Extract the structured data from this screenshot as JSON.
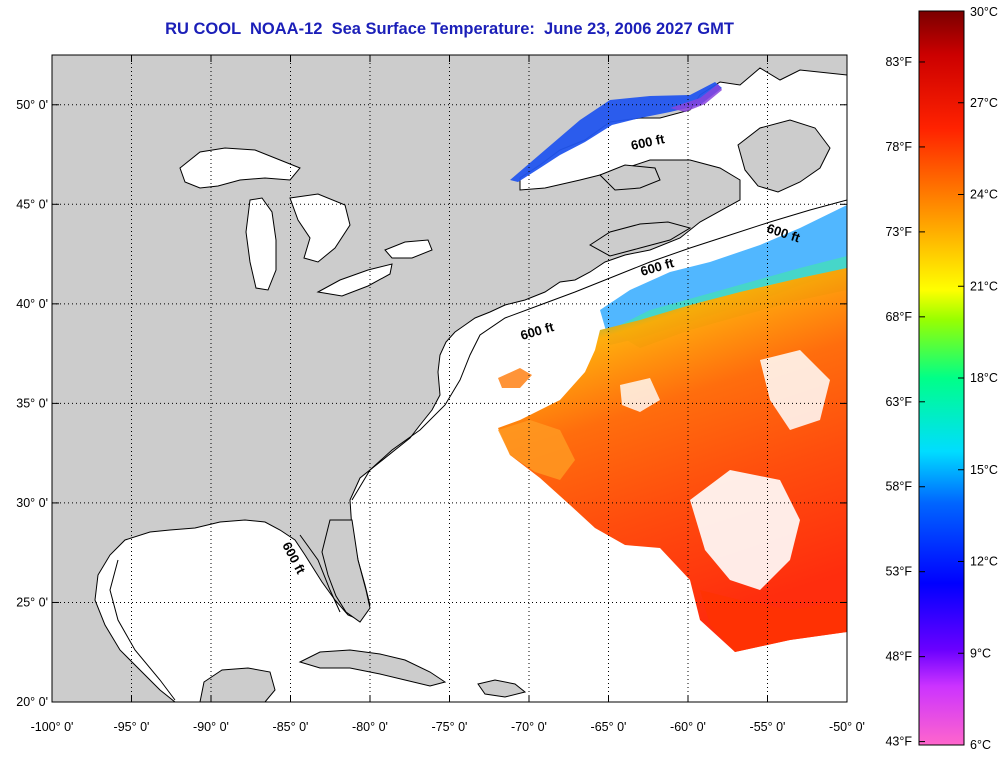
{
  "title": "RU COOL  NOAA-12  Sea Surface Temperature:  June 23, 2006 2027 GMT",
  "map": {
    "lon_range": [
      -100,
      -50
    ],
    "lat_range": [
      20,
      52.5
    ],
    "lon_ticks": [
      "-100° 0'",
      "-95° 0'",
      "-90° 0'",
      "-85° 0'",
      "-80° 0'",
      "-75° 0'",
      "-70° 0'",
      "-65° 0'",
      "-60° 0'",
      "-55° 0'",
      "-50° 0'"
    ],
    "lat_ticks": [
      "20° 0'",
      "25° 0'",
      "30° 0'",
      "35° 0'",
      "40° 0'",
      "45° 0'",
      "50° 0'"
    ],
    "land_color": "#cccccc",
    "ocean_color": "#ffffff",
    "grid": "dotted",
    "isobath_label": "600 ft"
  },
  "colorbar": {
    "celsius_labels": [
      "30°C",
      "27°C",
      "24°C",
      "21°C",
      "18°C",
      "15°C",
      "12°C",
      "9°C",
      "6°C"
    ],
    "fahrenheit_labels": [
      "83°F",
      "78°F",
      "73°F",
      "68°F",
      "63°F",
      "58°F",
      "53°F",
      "48°F",
      "43°F"
    ],
    "range_c": [
      6,
      30
    ],
    "colors": [
      "#ff66cc",
      "#7f00ff",
      "#0000ff",
      "#00ccff",
      "#00ff99",
      "#ffff00",
      "#ff9900",
      "#ff0000",
      "#8b0000"
    ]
  }
}
